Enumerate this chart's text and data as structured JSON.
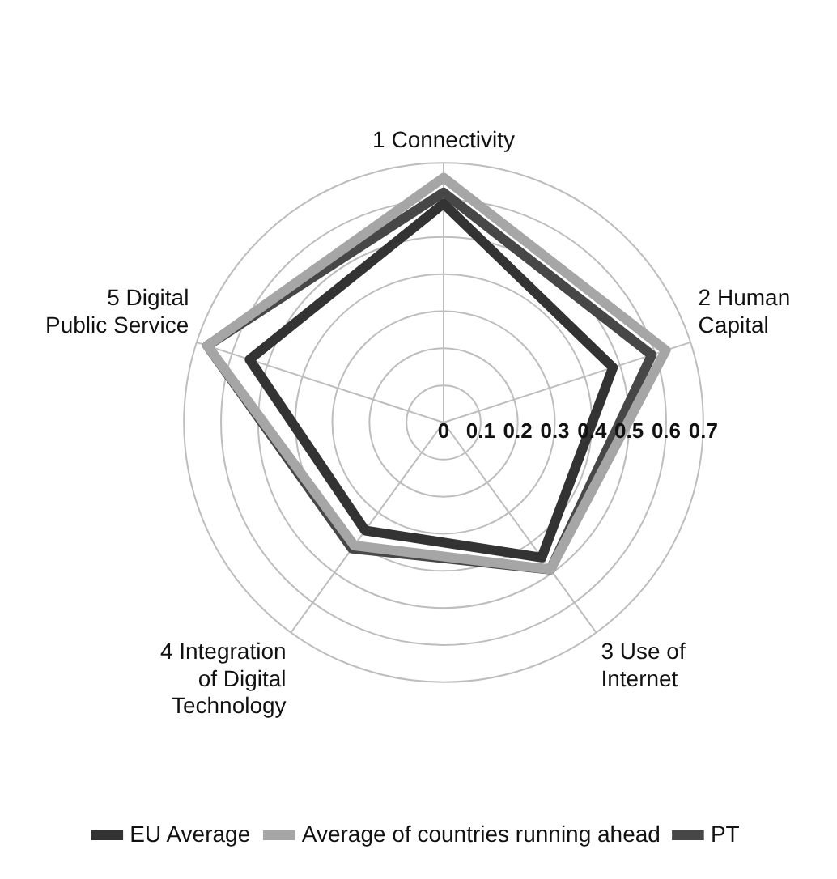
{
  "chart_data": {
    "type": "radar",
    "categories": [
      "1 Connectivity",
      "2 Human Capital",
      "3 Use of Internet",
      "4 Integration of Digital Technology",
      "5 Digital Public Service"
    ],
    "series": [
      {
        "name": "EU Average",
        "color": "#333333",
        "values": [
          0.59,
          0.48,
          0.45,
          0.36,
          0.55
        ]
      },
      {
        "name": "Average of countries running ahead",
        "color": "#a6a6a6",
        "values": [
          0.66,
          0.63,
          0.49,
          0.41,
          0.67
        ]
      },
      {
        "name": "PT",
        "color": "#474747",
        "values": [
          0.62,
          0.59,
          0.49,
          0.42,
          0.67
        ]
      }
    ],
    "ylim": [
      0,
      0.7
    ],
    "yticks": [
      0,
      0.1,
      0.2,
      0.3,
      0.4,
      0.5,
      0.6,
      0.7
    ],
    "grid": true,
    "legend": "bottom"
  }
}
